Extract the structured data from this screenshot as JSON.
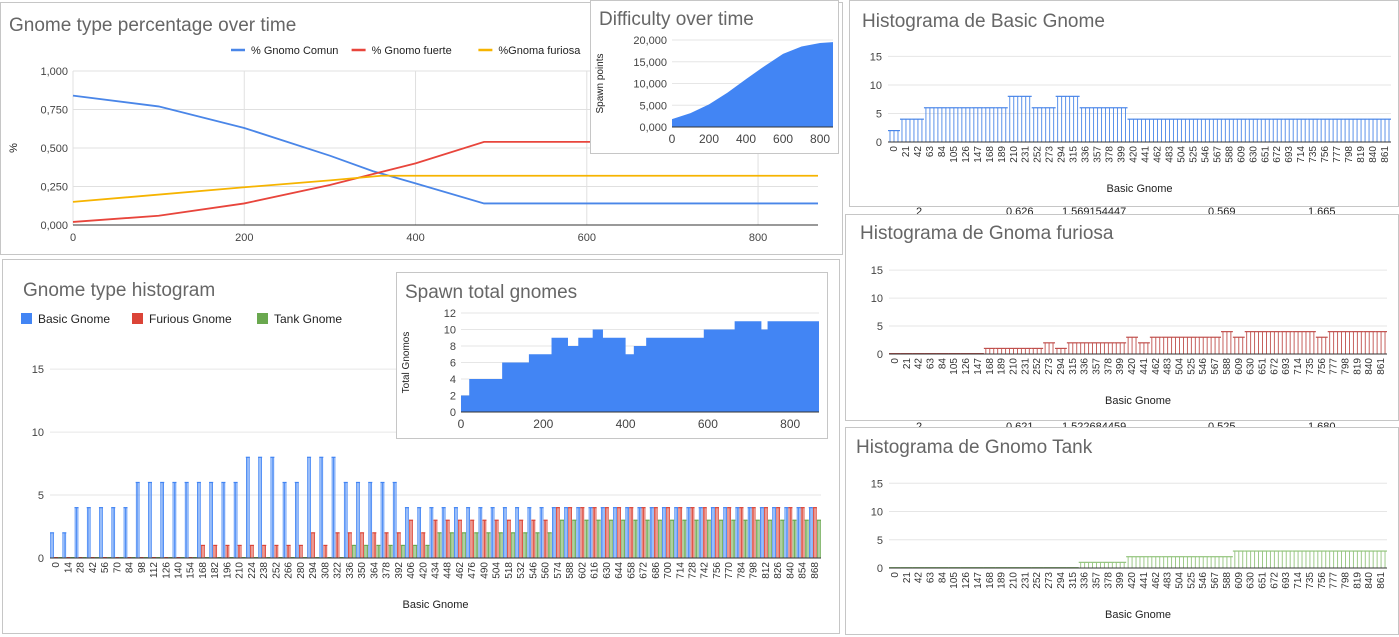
{
  "sheet_fragments": [
    {
      "c1": "2",
      "c2": "0.626",
      "c3": "1.569154447",
      "c4": "0.569",
      "c5": "1.665"
    },
    {
      "c1": "2",
      "c2": "0,621",
      "c3": "1,522684459",
      "c4": "0,525",
      "c5": "1,680"
    }
  ],
  "chart_data": [
    {
      "id": "pct",
      "type": "line",
      "title": "Gnome type percentage over time",
      "xlabel": "",
      "ylabel": "%",
      "xlim": [
        0,
        870
      ],
      "ylim": [
        0,
        1
      ],
      "x_ticks": [
        "0",
        "200",
        "400",
        "600",
        "800"
      ],
      "y_ticks": [
        "0,000",
        "0,250",
        "0,500",
        "0,750",
        "1,000"
      ],
      "legend_position": "top",
      "grid": true,
      "series": [
        {
          "name": "% Gnomo Comun",
          "color": "#4a86e8",
          "points": [
            [
              0,
              0.84
            ],
            [
              100,
              0.77
            ],
            [
              200,
              0.63
            ],
            [
              300,
              0.45
            ],
            [
              350,
              0.35
            ],
            [
              400,
              0.27
            ],
            [
              480,
              0.14
            ],
            [
              870,
              0.14
            ]
          ]
        },
        {
          "name": "% Gnomo fuerte",
          "color": "#e8453c",
          "points": [
            [
              0,
              0.02
            ],
            [
              100,
              0.06
            ],
            [
              200,
              0.14
            ],
            [
              300,
              0.26
            ],
            [
              350,
              0.33
            ],
            [
              400,
              0.4
            ],
            [
              480,
              0.54
            ],
            [
              870,
              0.54
            ]
          ]
        },
        {
          "name": "%Gnoma furiosa",
          "color": "#f6b400",
          "points": [
            [
              0,
              0.15
            ],
            [
              200,
              0.245
            ],
            [
              300,
              0.29
            ],
            [
              360,
              0.32
            ],
            [
              870,
              0.32
            ]
          ]
        }
      ]
    },
    {
      "id": "difficulty",
      "type": "area",
      "title": "Difficulty over time",
      "xlabel": "",
      "ylabel": "Spawn points",
      "xlim": [
        0,
        870
      ],
      "ylim": [
        0,
        20000
      ],
      "x_ticks": [
        "0",
        "200",
        "400",
        "600",
        "800"
      ],
      "y_ticks": [
        "0,000",
        "5,000",
        "10,000",
        "15,000",
        "20,000"
      ],
      "series": [
        {
          "name": "",
          "color": "#4285f4",
          "points": [
            [
              0,
              1800
            ],
            [
              100,
              3200
            ],
            [
              200,
              5200
            ],
            [
              300,
              7900
            ],
            [
              400,
              11000
            ],
            [
              500,
              14000
            ],
            [
              600,
              16800
            ],
            [
              700,
              18500
            ],
            [
              800,
              19300
            ],
            [
              870,
              19500
            ]
          ]
        }
      ]
    },
    {
      "id": "total",
      "type": "area",
      "title": "Spawn total gnomes",
      "xlabel": "",
      "ylabel": "Total Gnomos",
      "xlim": [
        0,
        870
      ],
      "ylim": [
        0,
        12
      ],
      "x_ticks": [
        "0",
        "200",
        "400",
        "600",
        "800"
      ],
      "y_ticks": [
        "0",
        "2",
        "4",
        "6",
        "8",
        "10",
        "12"
      ],
      "series": [
        {
          "name": "",
          "color": "#4285f4",
          "steps": [
            [
              0,
              2
            ],
            [
              20,
              4
            ],
            [
              100,
              6
            ],
            [
              165,
              7
            ],
            [
              220,
              9
            ],
            [
              260,
              8
            ],
            [
              285,
              9
            ],
            [
              320,
              10
            ],
            [
              345,
              9
            ],
            [
              400,
              7
            ],
            [
              420,
              8
            ],
            [
              450,
              9
            ],
            [
              490,
              9
            ],
            [
              590,
              10
            ],
            [
              640,
              10
            ],
            [
              665,
              11
            ],
            [
              730,
              10
            ],
            [
              745,
              11
            ],
            [
              870,
              11
            ]
          ]
        }
      ]
    },
    {
      "id": "hist",
      "type": "bar",
      "title": "Gnome type histogram",
      "xlabel": "Basic Gnome",
      "ylabel": "",
      "ylim": [
        0,
        17
      ],
      "y_ticks": [
        "0",
        "5",
        "10",
        "15"
      ],
      "x_tick_step": 14,
      "x_tick_count": 63,
      "legend_position": "top",
      "series": [
        {
          "name": "Basic Gnome",
          "color": "#4285f4",
          "steps": [
            [
              0,
              2
            ],
            [
              20,
              4
            ],
            [
              98,
              6
            ],
            [
              160,
              4
            ],
            [
              168,
              6
            ],
            [
              224,
              8
            ],
            [
              266,
              6
            ],
            [
              294,
              8
            ],
            [
              336,
              6
            ],
            [
              406,
              4
            ],
            [
              870,
              4
            ]
          ]
        },
        {
          "name": "Furious Gnome",
          "color": "#db4437",
          "steps": [
            [
              0,
              0
            ],
            [
              168,
              1
            ],
            [
              294,
              2
            ],
            [
              308,
              1
            ],
            [
              322,
              2
            ],
            [
              406,
              3
            ],
            [
              420,
              2
            ],
            [
              434,
              3
            ],
            [
              574,
              4
            ],
            [
              870,
              4
            ]
          ]
        },
        {
          "name": "Tank Gnome",
          "color": "#6aa84f",
          "steps": [
            [
              0,
              0
            ],
            [
              336,
              1
            ],
            [
              434,
              2
            ],
            [
              574,
              3
            ],
            [
              870,
              3
            ]
          ]
        }
      ]
    },
    {
      "id": "hist_basic",
      "type": "bar",
      "title": "Histograma de Basic Gnome",
      "xlabel": "Basic Gnome",
      "ylim": [
        0,
        17
      ],
      "y_ticks": [
        "0",
        "5",
        "10",
        "15"
      ],
      "x_tick_step": 21,
      "x_tick_count": 42,
      "series": [
        {
          "name": "Basic Gnome",
          "color": "#4a86e8",
          "steps": [
            [
              0,
              2
            ],
            [
              14,
              4
            ],
            [
              56,
              6
            ],
            [
              98,
              4
            ],
            [
              105,
              6
            ],
            [
              203,
              8
            ],
            [
              245,
              6
            ],
            [
              287,
              8
            ],
            [
              329,
              6
            ],
            [
              420,
              4
            ],
            [
              475,
              3
            ],
            [
              480,
              4
            ],
            [
              870,
              4
            ]
          ]
        }
      ]
    },
    {
      "id": "hist_furiosa",
      "type": "bar",
      "title": "Histograma de Gnoma furiosa",
      "xlabel": "Basic Gnome",
      "ylim": [
        0,
        17
      ],
      "y_ticks": [
        "0",
        "5",
        "10",
        "15"
      ],
      "x_tick_step": 21,
      "x_tick_count": 42,
      "series": [
        {
          "name": "Gnoma furiosa",
          "color": "#c0504d",
          "steps": [
            [
              0,
              0
            ],
            [
              168,
              1
            ],
            [
              273,
              2
            ],
            [
              294,
              1
            ],
            [
              315,
              2
            ],
            [
              420,
              3
            ],
            [
              441,
              2
            ],
            [
              462,
              3
            ],
            [
              588,
              4
            ],
            [
              600,
              3
            ],
            [
              630,
              4
            ],
            [
              740,
              3
            ],
            [
              760,
              4
            ],
            [
              870,
              4
            ]
          ]
        }
      ]
    },
    {
      "id": "hist_tank",
      "type": "bar",
      "title": "Histograma de Gnomo Tank",
      "xlabel": "Basic Gnome",
      "ylim": [
        0,
        17
      ],
      "y_ticks": [
        "0",
        "5",
        "10",
        "15"
      ],
      "x_tick_step": 21,
      "x_tick_count": 42,
      "series": [
        {
          "name": "Gnomo Tank",
          "color": "#93c47d",
          "steps": [
            [
              0,
              0
            ],
            [
              336,
              1
            ],
            [
              420,
              2
            ],
            [
              609,
              3
            ],
            [
              870,
              3
            ]
          ]
        }
      ]
    }
  ]
}
